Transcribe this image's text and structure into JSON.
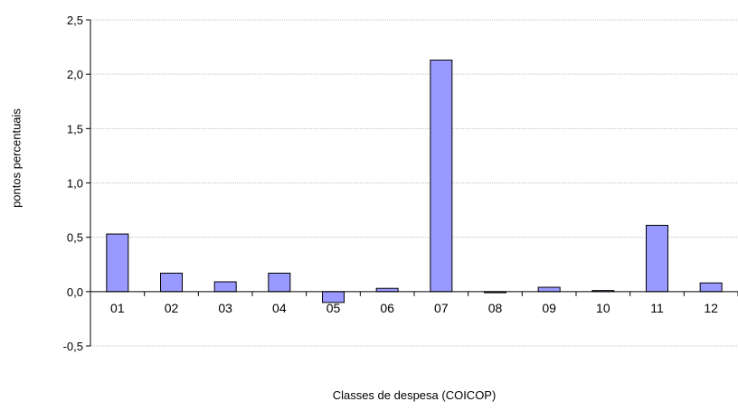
{
  "chart_data": {
    "type": "bar",
    "categories": [
      "01",
      "02",
      "03",
      "04",
      "05",
      "06",
      "07",
      "08",
      "09",
      "10",
      "11",
      "12"
    ],
    "values": [
      0.53,
      0.17,
      0.09,
      0.17,
      -0.1,
      0.03,
      2.13,
      -0.01,
      0.04,
      0.01,
      0.61,
      0.08
    ],
    "ylim": [
      -0.5,
      2.5
    ],
    "yticks": [
      "-0,5",
      "0,0",
      "0,5",
      "1,0",
      "1,5",
      "2,0",
      "2,5"
    ],
    "ylabel": "pontos percentuais",
    "xlabel": "Classes de despesa (COICOP)",
    "grid": true,
    "bar_color": "#9999ff",
    "bar_stroke": "#000000",
    "grid_color": "#c0c0c0"
  }
}
